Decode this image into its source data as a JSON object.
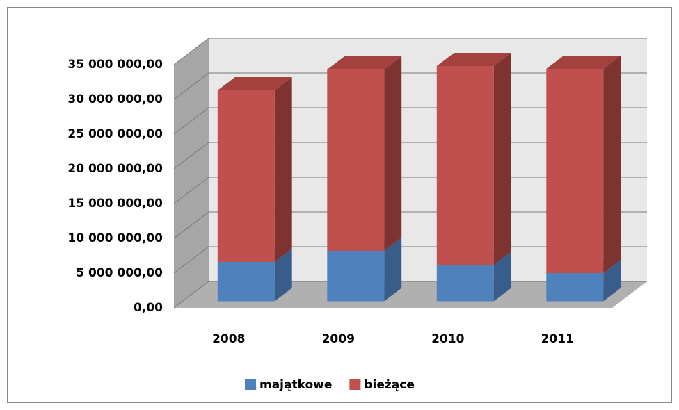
{
  "chart_data": {
    "type": "bar",
    "stacked": true,
    "categories": [
      "2008",
      "2009",
      "2010",
      "2011"
    ],
    "series": [
      {
        "name": "majątkowe",
        "color": "#4f81bd",
        "side": "#385d8a",
        "top": "#6f97c9",
        "values": [
          5650000,
          7250000,
          5250000,
          4050000
        ]
      },
      {
        "name": "bieżące",
        "color": "#c0504d",
        "side": "#7f3330",
        "top": "#a3413e",
        "values": [
          24700000,
          26100000,
          28600000,
          29400000
        ]
      }
    ],
    "ylim": [
      0,
      35000000
    ],
    "yticks": [
      {
        "value": 0,
        "label": "0,00"
      },
      {
        "value": 5000000,
        "label": "5 000 000,00"
      },
      {
        "value": 10000000,
        "label": "10 000 000,00"
      },
      {
        "value": 15000000,
        "label": "15 000 000,00"
      },
      {
        "value": 20000000,
        "label": "20 000 000,00"
      },
      {
        "value": 25000000,
        "label": "25 000 000,00"
      },
      {
        "value": 30000000,
        "label": "30 000 000,00"
      },
      {
        "value": 35000000,
        "label": "35 000 000,00"
      }
    ],
    "grid": true,
    "legend": "bottom"
  }
}
